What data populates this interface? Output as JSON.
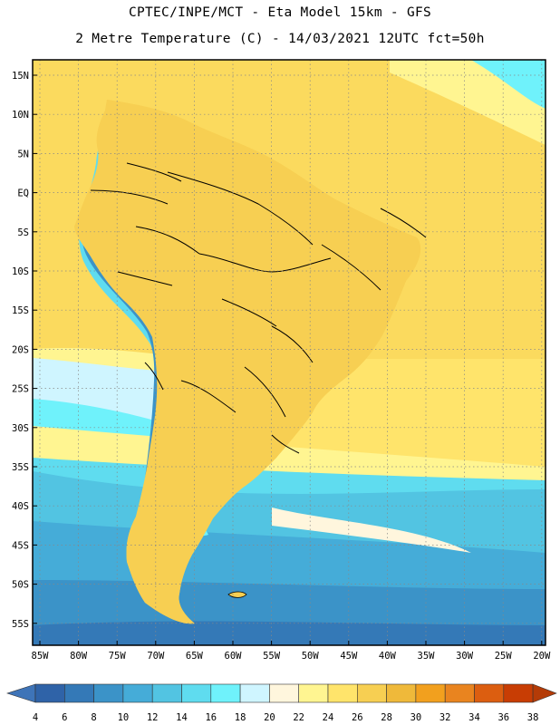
{
  "header": {
    "line1": "CPTEC/INPE/MCT -  Eta Model 15km - GFS",
    "line2": "2 Metre Temperature (C) - 14/03/2021 12UTC fct=50h"
  },
  "axes": {
    "lat_labels": [
      "15N",
      "10N",
      "5N",
      "EQ",
      "5S",
      "10S",
      "15S",
      "20S",
      "25S",
      "30S",
      "35S",
      "40S",
      "45S",
      "50S",
      "55S"
    ],
    "lon_labels": [
      "85W",
      "80W",
      "75W",
      "70W",
      "65W",
      "60W",
      "55W",
      "50W",
      "45W",
      "40W",
      "35W",
      "30W",
      "25W",
      "20W"
    ]
  },
  "colorbar": {
    "labels": [
      "4",
      "6",
      "8",
      "10",
      "12",
      "14",
      "16",
      "18",
      "20",
      "22",
      "24",
      "26",
      "28",
      "30",
      "32",
      "34",
      "36",
      "38"
    ],
    "colors": [
      "#2f63a8",
      "#3479b7",
      "#3b93c8",
      "#45acd8",
      "#52c4e2",
      "#5fdcef",
      "#6ff2fb",
      "#cff5ff",
      "#fff6dd",
      "#fff591",
      "#ffe46b",
      "#f7cf52",
      "#efb93a",
      "#f2a01e",
      "#e9841f",
      "#dc5e10",
      "#c83d04"
    ],
    "low_color": "#3e74b8",
    "high_color": "#b43b07"
  }
}
